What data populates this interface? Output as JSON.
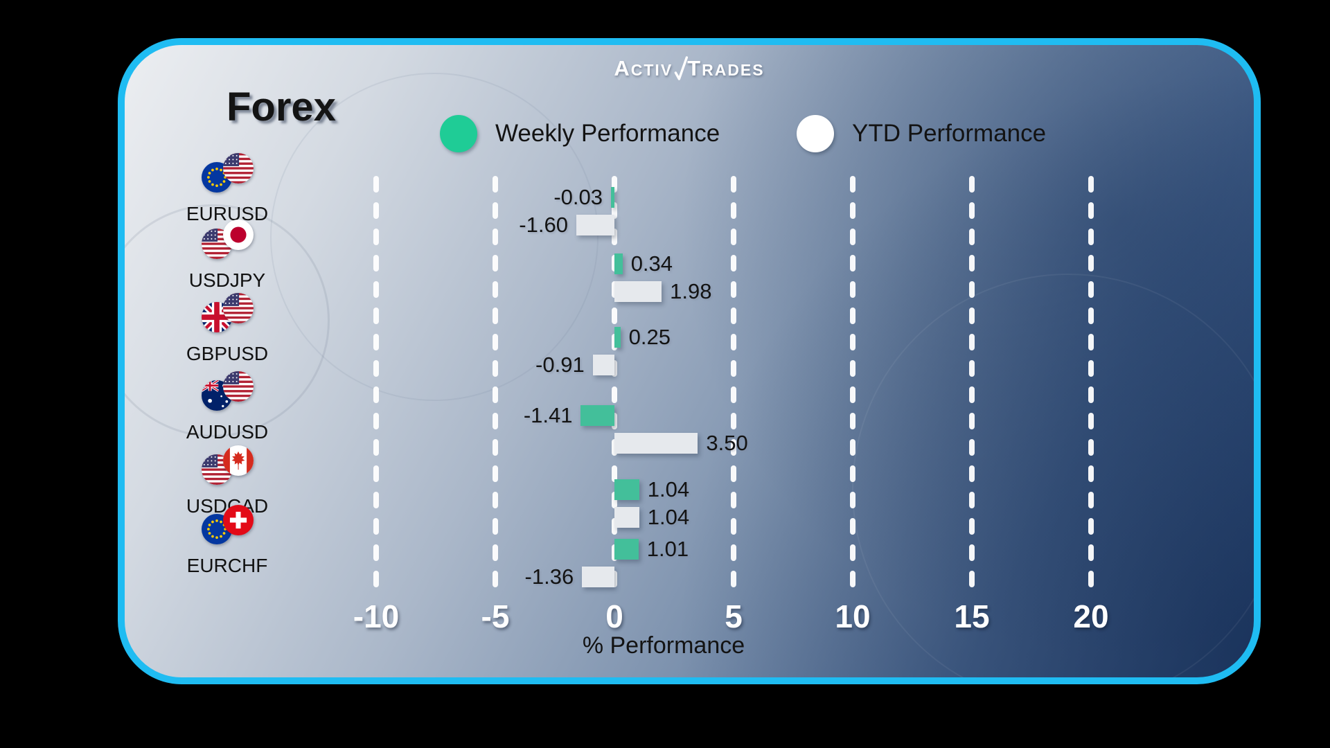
{
  "brand": {
    "name": "ActivTrades",
    "logo": {
      "a": "A",
      "ctiv": "CTIV",
      "t": "T",
      "rades": "RADES",
      "mark": "check-icon"
    }
  },
  "title": "Forex",
  "legend": {
    "weekly": {
      "label": "Weekly Performance",
      "color": "#1FCC96"
    },
    "ytd": {
      "label": "YTD Performance",
      "color": "#FFFFFF"
    }
  },
  "chart_data": {
    "type": "bar",
    "orientation": "horizontal",
    "title": "Forex",
    "xlabel": "% Performance",
    "x_ticks": [
      -10,
      -5,
      0,
      5,
      10,
      15,
      20
    ],
    "xlim": [
      -12.5,
      22.5
    ],
    "grid": "vertical-dashed-white",
    "legend_position": "top",
    "categories": [
      "EURUSD",
      "USDJPY",
      "GBPUSD",
      "AUDUSD",
      "USDCAD",
      "EURCHF"
    ],
    "flag_pairs": [
      [
        "eu",
        "us"
      ],
      [
        "us",
        "jp"
      ],
      [
        "gb",
        "us"
      ],
      [
        "au",
        "us"
      ],
      [
        "us",
        "ca"
      ],
      [
        "eu",
        "ch"
      ]
    ],
    "series": [
      {
        "name": "Weekly Performance",
        "color": "#43BF9A",
        "values": [
          -0.03,
          0.34,
          0.25,
          -1.41,
          1.04,
          1.01
        ]
      },
      {
        "name": "YTD Performance",
        "color": "#E6E9ED",
        "values": [
          -1.6,
          1.98,
          -0.91,
          3.5,
          1.04,
          -1.36
        ]
      }
    ],
    "value_label_decimals": 2
  },
  "colors": {
    "card_border": "#1FBCF2",
    "page_background": "#000000",
    "weekly_bar": "#43BF9A",
    "ytd_bar": "#E6E9ED"
  }
}
